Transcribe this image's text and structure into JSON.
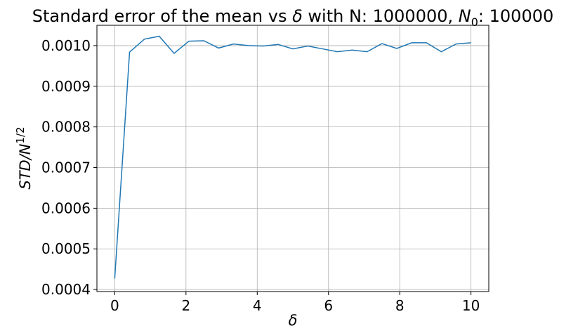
{
  "chart_data": {
    "type": "line",
    "title_main": "Standard error of the mean vs ",
    "title_delta": "δ",
    "title_mid": " with N: 1000000, ",
    "title_n0": "N",
    "title_n0_sub": "0",
    "title_end": ": 100000",
    "xlabel": "δ",
    "ylabel_main": "STD/N",
    "ylabel_sup": "1/2",
    "xlim": [
      -0.5,
      10.5
    ],
    "ylim": [
      0.000395,
      0.00105
    ],
    "xticks": [
      0,
      2,
      4,
      6,
      8,
      10
    ],
    "xtick_labels": [
      "0",
      "2",
      "4",
      "6",
      "8",
      "10"
    ],
    "yticks": [
      0.0004,
      0.0005,
      0.0006,
      0.0007,
      0.0008,
      0.0009,
      0.001
    ],
    "ytick_labels": [
      "0.0004",
      "0.0005",
      "0.0006",
      "0.0007",
      "0.0008",
      "0.0009",
      "0.0010"
    ],
    "grid": true,
    "series": [
      {
        "color": "#1f77b4",
        "x": [
          0,
          0.4167,
          0.8333,
          1.25,
          1.6667,
          2.0833,
          2.5,
          2.9167,
          3.3333,
          3.75,
          4.1667,
          4.5833,
          5.0,
          5.4167,
          5.8333,
          6.25,
          6.6667,
          7.0833,
          7.5,
          7.9167,
          8.3333,
          8.75,
          9.1667,
          9.5833,
          10.0
        ],
        "y": [
          0.000427,
          0.000984,
          0.001016,
          0.001023,
          0.000981,
          0.001011,
          0.001012,
          0.000994,
          0.001004,
          0.001,
          0.000999,
          0.001003,
          0.000992,
          0.000999,
          0.000992,
          0.000985,
          0.000989,
          0.000985,
          0.001005,
          0.000993,
          0.001007,
          0.001007,
          0.000985,
          0.001004,
          0.001007
        ]
      }
    ]
  }
}
